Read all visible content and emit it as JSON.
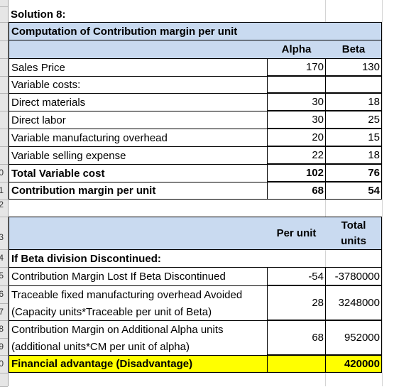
{
  "sheet": {
    "title": "Solution 8:",
    "table1": {
      "heading": "Computation of Contribution margin per unit",
      "col_alpha": "Alpha",
      "col_beta": "Beta",
      "rows": [
        {
          "label": "Sales Price",
          "alpha": "170",
          "beta": "130"
        },
        {
          "label": "Variable costs:",
          "alpha": "",
          "beta": ""
        },
        {
          "label": "Direct materials",
          "alpha": "30",
          "beta": "18"
        },
        {
          "label": "Direct labor",
          "alpha": "30",
          "beta": "25"
        },
        {
          "label": "Variable manufacturing overhead",
          "alpha": "20",
          "beta": "15"
        },
        {
          "label": "Variable selling expense",
          "alpha": "22",
          "beta": "18"
        }
      ],
      "total_variable": {
        "label": "Total Variable cost",
        "alpha": "102",
        "beta": "76"
      },
      "contribution": {
        "label": "Contribution margin per unit",
        "alpha": "68",
        "beta": "54"
      }
    },
    "table2": {
      "col_per_unit": "Per unit",
      "col_total_units_1": "Total",
      "col_total_units_2": "units",
      "section": "If Beta division Discontinued:",
      "cm_lost": {
        "label": "Contribution Margin Lost If Beta Discontinued",
        "per_unit": "-54",
        "total": "-3780000"
      },
      "traceable": {
        "label1": "Traceable fixed manufacturing overhead Avoided",
        "label2": "(Capacity units*Traceable per unit of Beta)",
        "per_unit": "28",
        "total": "3248000"
      },
      "cm_alpha": {
        "label1": "Contribution Margin on Additional Alpha units",
        "label2": "(additional units*CM per unit of alpha)",
        "per_unit": "68",
        "total": "952000"
      },
      "advantage": {
        "label": "Financial advantage (Disadvantage)",
        "per_unit": "",
        "total": "420000"
      }
    },
    "row_numbers": [
      "0",
      "1",
      "2",
      "3",
      "4",
      "5",
      "6",
      "7",
      "8",
      "9",
      "0"
    ]
  }
}
